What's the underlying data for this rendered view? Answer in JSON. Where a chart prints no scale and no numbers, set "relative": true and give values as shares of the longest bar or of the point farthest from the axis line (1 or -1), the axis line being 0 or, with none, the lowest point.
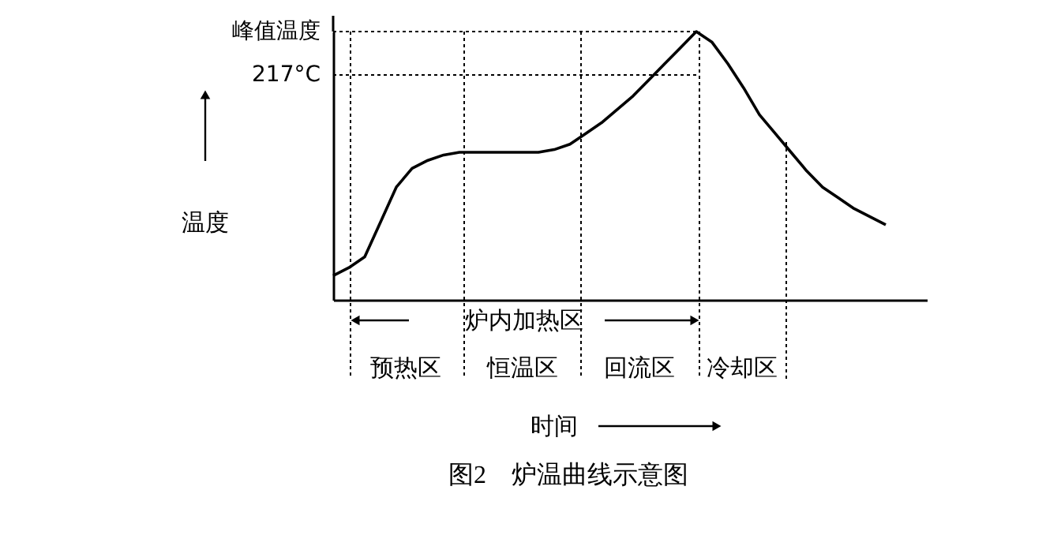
{
  "chart_data": {
    "type": "line",
    "title": "图2　炉温曲线示意图",
    "xlabel": "时间",
    "ylabel": "温度",
    "relative": true,
    "categories": [
      null,
      null,
      null,
      null,
      null,
      null,
      null,
      null,
      null,
      null,
      null,
      null,
      null,
      null,
      null,
      null,
      null,
      null,
      null,
      null,
      null,
      null,
      null,
      null,
      null,
      null,
      null,
      null,
      null,
      null,
      null,
      null,
      null,
      null,
      null,
      null
    ],
    "series": [
      {
        "color": "#000000",
        "values": [
          0.09,
          0.12,
          0.16,
          0.29,
          0.42,
          0.49,
          0.52,
          0.54,
          0.55,
          0.55,
          0.55,
          0.55,
          0.55,
          0.55,
          0.56,
          0.58,
          0.62,
          0.66,
          0.71,
          0.76,
          0.82,
          0.88,
          0.94,
          1,
          0.96,
          0.88,
          0.79,
          0.69,
          0.62,
          0.55,
          0.48,
          0.42,
          0.38,
          0.34,
          0.31,
          0.28
        ]
      }
    ],
    "ref_lines": [
      {
        "axis": "y",
        "value": 1,
        "label": "峰值温度",
        "line_style": "dotted"
      },
      {
        "axis": "y",
        "value": 0.838,
        "label": "217°C",
        "line_style": "dotted"
      }
    ],
    "annotations": [
      "炉内加热区",
      "预热区",
      "恒温区",
      "回流区",
      "冷却区"
    ]
  }
}
